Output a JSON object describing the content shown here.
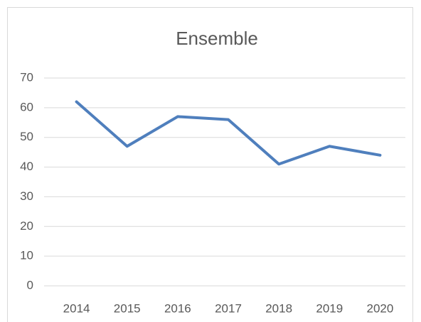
{
  "chart_data": {
    "type": "line",
    "title": "Ensemble",
    "categories": [
      "2014",
      "2015",
      "2016",
      "2017",
      "2018",
      "2019",
      "2020"
    ],
    "series": [
      {
        "name": "Ensemble",
        "color": "#4f7fbd",
        "values": [
          62,
          47,
          57,
          56,
          41,
          47,
          44
        ]
      }
    ],
    "ylim": [
      0,
      70
    ],
    "yticks": [
      0,
      10,
      20,
      30,
      40,
      50,
      60,
      70
    ],
    "grid": true
  }
}
